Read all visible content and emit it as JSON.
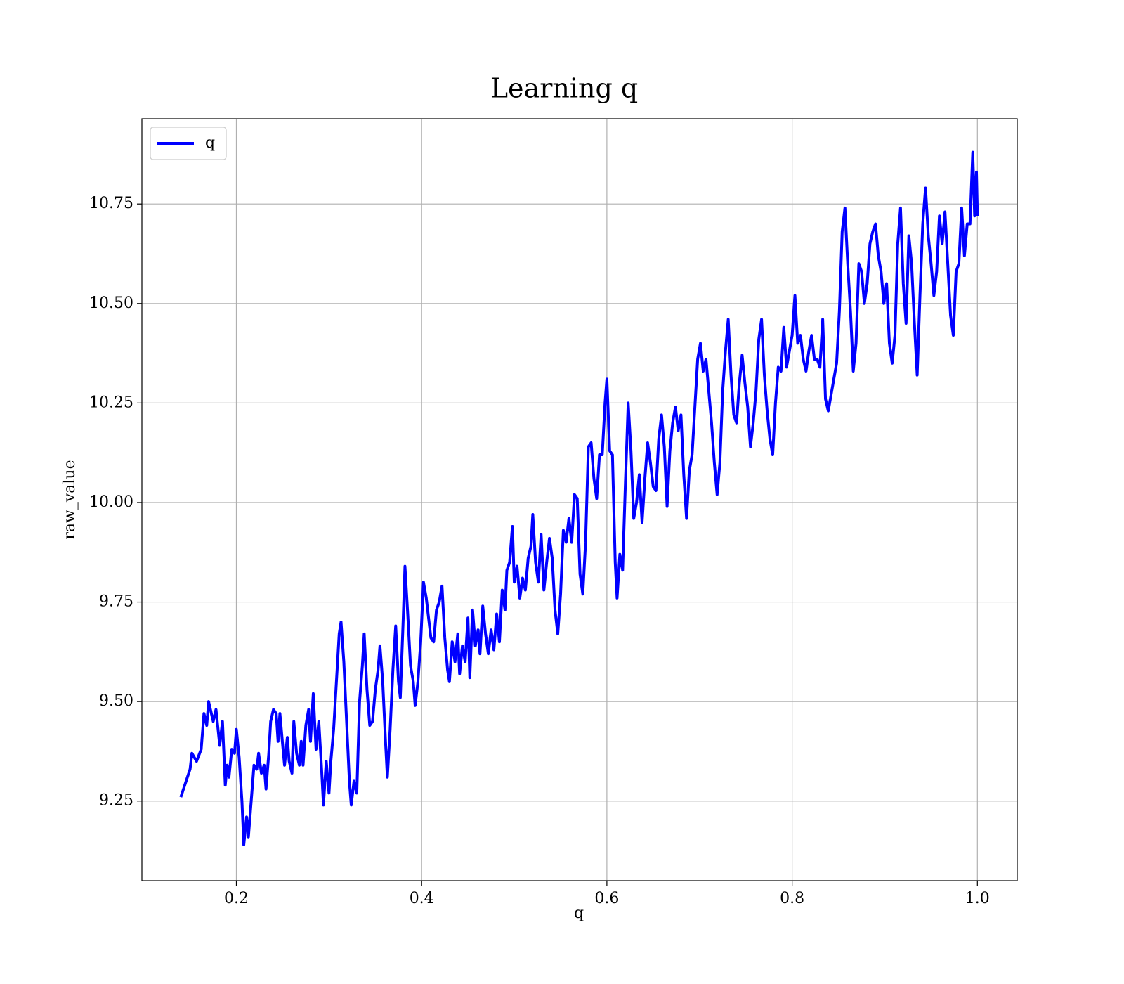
{
  "chart_data": {
    "type": "line",
    "title": "Learning q",
    "x_label": "q",
    "y_label": "raw_value",
    "grid": true,
    "legend": "upper left",
    "xlim": [
      0.098,
      1.043
    ],
    "ylim": [
      9.05,
      10.964
    ],
    "xticks": [
      0.2,
      0.4,
      0.6,
      0.8,
      {
        "value": 1,
        "label": "1.0"
      }
    ],
    "yticks": [
      9.25,
      {
        "value": 9.5,
        "label": "9.50"
      },
      9.75,
      {
        "value": 10,
        "label": "10.00"
      },
      10.25,
      {
        "value": 10.5,
        "label": "10.50"
      },
      10.75
    ],
    "x": [
      0.14,
      0.15,
      0.152,
      0.157,
      0.162,
      0.165,
      0.168,
      0.17,
      0.175,
      0.178,
      0.182,
      0.185,
      0.188,
      0.19,
      0.192,
      0.195,
      0.198,
      0.2,
      0.203,
      0.206,
      0.208,
      0.211,
      0.213,
      0.216,
      0.219,
      0.222,
      0.224,
      0.227,
      0.23,
      0.232,
      0.235,
      0.237,
      0.24,
      0.243,
      0.245,
      0.247,
      0.25,
      0.252,
      0.255,
      0.257,
      0.26,
      0.262,
      0.265,
      0.268,
      0.27,
      0.272,
      0.275,
      0.278,
      0.28,
      0.283,
      0.286,
      0.289,
      0.292,
      0.294,
      0.297,
      0.3,
      0.302,
      0.305,
      0.308,
      0.311,
      0.313,
      0.316,
      0.319,
      0.322,
      0.324,
      0.327,
      0.33,
      0.333,
      0.336,
      0.338,
      0.341,
      0.344,
      0.347,
      0.35,
      0.353,
      0.355,
      0.358,
      0.361,
      0.363,
      0.366,
      0.369,
      0.372,
      0.375,
      0.377,
      0.38,
      0.382,
      0.385,
      0.388,
      0.391,
      0.393,
      0.396,
      0.399,
      0.402,
      0.405,
      0.408,
      0.41,
      0.413,
      0.416,
      0.419,
      0.422,
      0.425,
      0.428,
      0.43,
      0.433,
      0.436,
      0.439,
      0.441,
      0.444,
      0.447,
      0.45,
      0.452,
      0.455,
      0.458,
      0.461,
      0.463,
      0.466,
      0.469,
      0.472,
      0.475,
      0.478,
      0.481,
      0.484,
      0.487,
      0.49,
      0.492,
      0.495,
      0.498,
      0.5,
      0.503,
      0.506,
      0.509,
      0.512,
      0.515,
      0.518,
      0.52,
      0.523,
      0.526,
      0.529,
      0.532,
      0.535,
      0.538,
      0.541,
      0.544,
      0.547,
      0.55,
      0.553,
      0.556,
      0.559,
      0.562,
      0.565,
      0.568,
      0.571,
      0.574,
      0.577,
      0.58,
      0.583,
      0.586,
      0.589,
      0.592,
      0.595,
      0.598,
      0.6,
      0.603,
      0.606,
      0.609,
      0.611,
      0.614,
      0.617,
      0.62,
      0.623,
      0.626,
      0.629,
      0.632,
      0.635,
      0.638,
      0.641,
      0.644,
      0.647,
      0.65,
      0.653,
      0.656,
      0.659,
      0.662,
      0.665,
      0.668,
      0.671,
      0.674,
      0.677,
      0.68,
      0.683,
      0.686,
      0.689,
      0.692,
      0.695,
      0.698,
      0.701,
      0.704,
      0.707,
      0.71,
      0.713,
      0.716,
      0.719,
      0.722,
      0.725,
      0.728,
      0.731,
      0.734,
      0.737,
      0.74,
      0.743,
      0.746,
      0.749,
      0.752,
      0.755,
      0.758,
      0.761,
      0.764,
      0.767,
      0.77,
      0.773,
      0.776,
      0.779,
      0.782,
      0.785,
      0.788,
      0.791,
      0.794,
      0.797,
      0.8,
      0.803,
      0.806,
      0.809,
      0.812,
      0.815,
      0.818,
      0.821,
      0.824,
      0.827,
      0.83,
      0.833,
      0.836,
      0.839,
      0.842,
      0.845,
      0.848,
      0.851,
      0.854,
      0.857,
      0.86,
      0.863,
      0.866,
      0.869,
      0.872,
      0.875,
      0.878,
      0.881,
      0.884,
      0.887,
      0.89,
      0.893,
      0.896,
      0.899,
      0.902,
      0.905,
      0.908,
      0.911,
      0.914,
      0.917,
      0.92,
      0.923,
      0.926,
      0.929,
      0.932,
      0.935,
      0.938,
      0.941,
      0.944,
      0.947,
      0.95,
      0.953,
      0.956,
      0.959,
      0.962,
      0.965,
      0.968,
      0.971,
      0.974,
      0.977,
      0.98,
      0.983,
      0.986,
      0.989,
      0.992,
      0.995,
      0.997,
      0.999,
      1.0
    ],
    "series": [
      {
        "name": "q",
        "color": "#0000ff",
        "values": [
          9.26,
          9.33,
          9.37,
          9.35,
          9.38,
          9.47,
          9.44,
          9.5,
          9.45,
          9.48,
          9.39,
          9.45,
          9.29,
          9.34,
          9.31,
          9.38,
          9.37,
          9.43,
          9.36,
          9.25,
          9.14,
          9.21,
          9.16,
          9.25,
          9.34,
          9.33,
          9.37,
          9.32,
          9.34,
          9.28,
          9.37,
          9.45,
          9.48,
          9.47,
          9.4,
          9.47,
          9.39,
          9.34,
          9.41,
          9.35,
          9.32,
          9.45,
          9.37,
          9.34,
          9.4,
          9.34,
          9.44,
          9.48,
          9.4,
          9.52,
          9.38,
          9.45,
          9.33,
          9.24,
          9.35,
          9.27,
          9.35,
          9.43,
          9.55,
          9.67,
          9.7,
          9.6,
          9.45,
          9.3,
          9.24,
          9.3,
          9.27,
          9.5,
          9.59,
          9.67,
          9.53,
          9.44,
          9.45,
          9.53,
          9.58,
          9.64,
          9.55,
          9.4,
          9.31,
          9.43,
          9.58,
          9.69,
          9.55,
          9.51,
          9.7,
          9.84,
          9.72,
          9.59,
          9.55,
          9.49,
          9.55,
          9.65,
          9.8,
          9.76,
          9.7,
          9.66,
          9.65,
          9.73,
          9.75,
          9.79,
          9.66,
          9.58,
          9.55,
          9.65,
          9.6,
          9.67,
          9.57,
          9.64,
          9.6,
          9.71,
          9.56,
          9.73,
          9.64,
          9.68,
          9.62,
          9.74,
          9.67,
          9.62,
          9.68,
          9.63,
          9.72,
          9.65,
          9.78,
          9.73,
          9.83,
          9.85,
          9.94,
          9.8,
          9.84,
          9.76,
          9.81,
          9.78,
          9.86,
          9.89,
          9.97,
          9.85,
          9.8,
          9.92,
          9.78,
          9.85,
          9.91,
          9.86,
          9.73,
          9.67,
          9.77,
          9.93,
          9.9,
          9.96,
          9.9,
          10.02,
          10.01,
          9.82,
          9.77,
          9.9,
          10.14,
          10.15,
          10.06,
          10.01,
          10.12,
          10.12,
          10.25,
          10.31,
          10.13,
          10.12,
          9.85,
          9.76,
          9.87,
          9.83,
          10.05,
          10.25,
          10.13,
          9.96,
          10.0,
          10.07,
          9.95,
          10.06,
          10.15,
          10.1,
          10.04,
          10.03,
          10.16,
          10.22,
          10.14,
          9.99,
          10.13,
          10.2,
          10.24,
          10.18,
          10.22,
          10.07,
          9.96,
          10.08,
          10.12,
          10.24,
          10.36,
          10.4,
          10.33,
          10.36,
          10.28,
          10.2,
          10.1,
          10.02,
          10.1,
          10.28,
          10.38,
          10.46,
          10.32,
          10.22,
          10.2,
          10.3,
          10.37,
          10.3,
          10.24,
          10.14,
          10.2,
          10.28,
          10.41,
          10.46,
          10.32,
          10.23,
          10.16,
          10.12,
          10.25,
          10.34,
          10.33,
          10.44,
          10.34,
          10.38,
          10.42,
          10.52,
          10.4,
          10.42,
          10.36,
          10.33,
          10.38,
          10.42,
          10.36,
          10.36,
          10.34,
          10.46,
          10.26,
          10.23,
          10.27,
          10.31,
          10.35,
          10.48,
          10.68,
          10.74,
          10.6,
          10.48,
          10.33,
          10.4,
          10.6,
          10.58,
          10.5,
          10.55,
          10.65,
          10.68,
          10.7,
          10.62,
          10.58,
          10.5,
          10.55,
          10.4,
          10.35,
          10.42,
          10.65,
          10.74,
          10.55,
          10.45,
          10.67,
          10.6,
          10.45,
          10.32,
          10.52,
          10.7,
          10.79,
          10.67,
          10.6,
          10.52,
          10.58,
          10.72,
          10.65,
          10.73,
          10.6,
          10.47,
          10.42,
          10.58,
          10.6,
          10.74,
          10.62,
          10.7,
          10.7,
          10.88,
          10.72,
          10.83,
          10.72
        ]
      }
    ]
  }
}
